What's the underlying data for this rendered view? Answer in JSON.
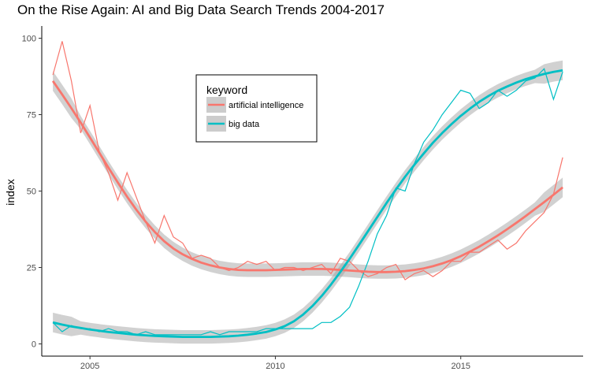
{
  "chart_data": {
    "type": "line",
    "title": "On the Rise Again: AI and Big Data Search Trends 2004-2017",
    "xlabel": "",
    "ylabel": "index",
    "xlim": [
      2003.7,
      2018.3
    ],
    "ylim": [
      -4,
      104
    ],
    "x_ticks": [
      2005,
      2010,
      2015
    ],
    "y_ticks": [
      0,
      25,
      50,
      75,
      100
    ],
    "grid": false,
    "legend": {
      "title": "keyword",
      "placement": "inside-top-center"
    },
    "series": [
      {
        "name": "artificial intelligence",
        "color": "#F8766D",
        "x": [
          2004.0,
          2004.25,
          2004.5,
          2004.75,
          2005.0,
          2005.25,
          2005.5,
          2005.75,
          2006.0,
          2006.25,
          2006.5,
          2006.75,
          2007.0,
          2007.25,
          2007.5,
          2007.75,
          2008.0,
          2008.25,
          2008.5,
          2008.75,
          2009.0,
          2009.25,
          2009.5,
          2009.75,
          2010.0,
          2010.25,
          2010.5,
          2010.75,
          2011.0,
          2011.25,
          2011.5,
          2011.75,
          2012.0,
          2012.25,
          2012.5,
          2012.75,
          2013.0,
          2013.25,
          2013.5,
          2013.75,
          2014.0,
          2014.25,
          2014.5,
          2014.75,
          2015.0,
          2015.25,
          2015.5,
          2015.75,
          2016.0,
          2016.25,
          2016.5,
          2016.75,
          2017.0,
          2017.25,
          2017.5,
          2017.75
        ],
        "values": [
          88,
          99,
          86,
          69,
          78,
          63,
          56,
          47,
          56,
          48,
          40,
          33,
          42,
          35,
          33,
          28,
          29,
          28,
          25,
          24,
          25,
          27,
          26,
          27,
          24,
          25,
          25,
          24,
          25,
          26,
          23,
          28,
          27,
          24,
          22,
          23,
          25,
          26,
          21,
          23,
          24,
          22,
          24,
          27,
          27,
          30,
          30,
          32,
          34,
          31,
          33,
          37,
          40,
          43,
          49,
          61
        ],
        "smooth": [
          86,
          81.6,
          77.1,
          72.4,
          67.5,
          62.6,
          57.6,
          52.8,
          48.2,
          43.9,
          40.0,
          36.6,
          33.6,
          31.2,
          29.3,
          27.8,
          26.6,
          25.7,
          25.0,
          24.5,
          24.2,
          24.1,
          24.1,
          24.1,
          24.2,
          24.3,
          24.4,
          24.5,
          24.5,
          24.5,
          24.4,
          24.2,
          24.0,
          23.8,
          23.6,
          23.5,
          23.5,
          23.6,
          23.8,
          24.2,
          24.7,
          25.4,
          26.3,
          27.4,
          28.7,
          30.2,
          31.8,
          33.6,
          35.5,
          37.5,
          39.6,
          41.8,
          44.1,
          46.4,
          48.8,
          51.2
        ]
      },
      {
        "name": "big data",
        "color": "#00BFC4",
        "x": [
          2004.0,
          2004.25,
          2004.5,
          2004.75,
          2005.0,
          2005.25,
          2005.5,
          2005.75,
          2006.0,
          2006.25,
          2006.5,
          2006.75,
          2007.0,
          2007.25,
          2007.5,
          2007.75,
          2008.0,
          2008.25,
          2008.5,
          2008.75,
          2009.0,
          2009.25,
          2009.5,
          2009.75,
          2010.0,
          2010.25,
          2010.5,
          2010.75,
          2011.0,
          2011.25,
          2011.5,
          2011.75,
          2012.0,
          2012.25,
          2012.5,
          2012.75,
          2013.0,
          2013.25,
          2013.5,
          2013.75,
          2014.0,
          2014.25,
          2014.5,
          2014.75,
          2015.0,
          2015.25,
          2015.5,
          2015.75,
          2016.0,
          2016.25,
          2016.5,
          2016.75,
          2017.0,
          2017.25,
          2017.5,
          2017.75
        ],
        "values": [
          7,
          4,
          6,
          5,
          5,
          4,
          5,
          4,
          4,
          3,
          4,
          3,
          3,
          3,
          3,
          3,
          3,
          4,
          3,
          4,
          4,
          4,
          4,
          5,
          5,
          5,
          5,
          5,
          5,
          7,
          7,
          9,
          12,
          19,
          27,
          36,
          42,
          51,
          50,
          59,
          66,
          70,
          75,
          79,
          83,
          82,
          77,
          79,
          83,
          81,
          83,
          86,
          87,
          90,
          80,
          89
        ],
        "smooth": [
          7,
          6.3,
          5.7,
          5.2,
          4.7,
          4.3,
          3.9,
          3.6,
          3.3,
          3.0,
          2.8,
          2.6,
          2.5,
          2.4,
          2.3,
          2.3,
          2.3,
          2.3,
          2.4,
          2.5,
          2.7,
          3.0,
          3.4,
          3.9,
          4.7,
          5.8,
          7.4,
          9.6,
          12.4,
          15.7,
          19.4,
          23.5,
          27.8,
          32.3,
          36.9,
          41.5,
          46.1,
          50.5,
          54.7,
          58.6,
          62.3,
          65.8,
          69.0,
          71.9,
          74.6,
          77.0,
          79.2,
          81.1,
          82.8,
          84.2,
          85.5,
          86.6,
          87.5,
          88.3,
          89.0,
          89.5
        ]
      }
    ]
  }
}
